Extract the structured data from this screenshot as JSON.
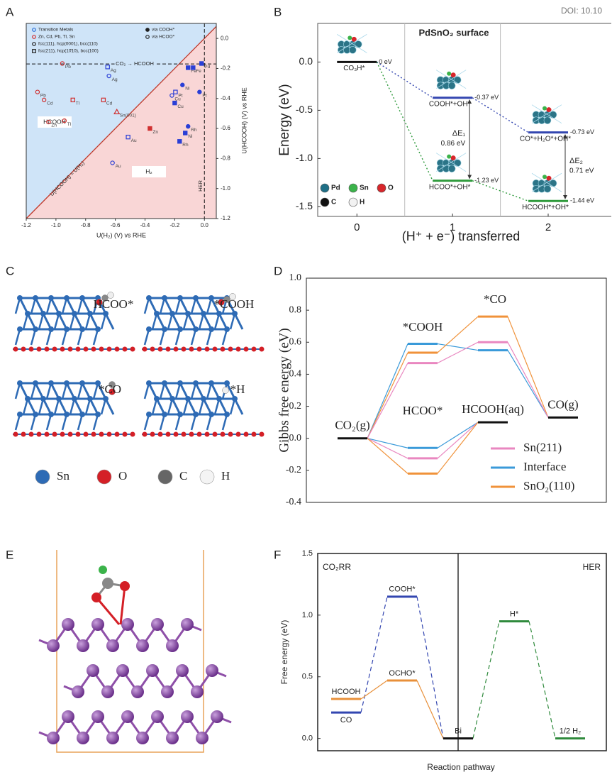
{
  "panel_labels": [
    "A",
    "B",
    "C",
    "D",
    "E",
    "F"
  ],
  "doi": "DOI: 10.10",
  "structures_c": {
    "labels": [
      "HCOO*",
      "*COOH",
      "*CO",
      "*H"
    ],
    "legend": [
      "Sn",
      "O",
      "C",
      "H"
    ]
  },
  "chart_data": [
    {
      "type": "scatter",
      "xlabel": "U(H₂) (V) vs RHE",
      "ylabel": "U(HCOOH) (V) vs RHE",
      "xlim": [
        -1.2,
        0.08
      ],
      "ylim": [
        -1.2,
        0.1
      ],
      "xticks": [
        -1.2,
        {
          "value": -1,
          "label": "-1.0"
        },
        -0.8,
        -0.6,
        -0.4,
        -0.2,
        {
          "value": 0,
          "label": "0.0"
        }
      ],
      "yticks": [
        {
          "value": 0,
          "label": "0.0"
        },
        -0.2,
        -0.4,
        -0.6,
        -0.8,
        {
          "value": -1,
          "label": "-1.0"
        },
        -1.2
      ],
      "y_axis_side": "right",
      "regions": [
        {
          "label": "HCOOH",
          "color": "#cfe4f8"
        },
        {
          "label": "H₂",
          "color": "#f9d6d6"
        }
      ],
      "diagonal": {
        "label": "U(HCOOH) = U(H₂)",
        "color": "#c0392b"
      },
      "hline": {
        "value": -0.17,
        "label": "CO₂ → HCOOH"
      },
      "vline": {
        "value": 0,
        "label": "HER"
      },
      "legend": [
        {
          "label": "Transition Metals",
          "shape": "circle",
          "filled": false,
          "color": "#2a6fd6"
        },
        {
          "label": "Zn, Cd, Pb, Tl, Sn",
          "shape": "circle",
          "filled": false,
          "color": "#d03030"
        },
        {
          "label": "fcc(111), hcp(0001), bcc(110)",
          "shape": "circle",
          "filled": false,
          "color": "#222222"
        },
        {
          "label": "fcc(211), hcp(10̄10), bcc(100)",
          "shape": "square",
          "filled": false,
          "color": "#222222"
        },
        {
          "label": "via COOH*",
          "shape": "circle",
          "filled": true,
          "color": "#222222"
        },
        {
          "label": "via HCOO*",
          "shape": "circle",
          "filled": false,
          "color": "#222222"
        }
      ],
      "points": [
        {
          "label": "Pb",
          "x": -0.957,
          "y": -0.167,
          "shape": "circle",
          "filled": false,
          "color": "#d03030"
        },
        {
          "label": "Ag",
          "x": -0.652,
          "y": -0.19,
          "shape": "square",
          "filled": false,
          "color": "#2a3fd6"
        },
        {
          "label": "Ag",
          "x": -0.643,
          "y": -0.25,
          "shape": "circle",
          "filled": false,
          "color": "#2a3fd6"
        },
        {
          "label": "Pb",
          "x": -1.124,
          "y": -0.357,
          "shape": "circle",
          "filled": false,
          "color": "#d03030"
        },
        {
          "label": "Cd",
          "x": -1.08,
          "y": -0.41,
          "shape": "circle",
          "filled": false,
          "color": "#d03030"
        },
        {
          "label": "Tl",
          "x": -0.886,
          "y": -0.41,
          "shape": "square",
          "filled": false,
          "color": "#d03030"
        },
        {
          "label": "Cd",
          "x": -0.68,
          "y": -0.41,
          "shape": "square",
          "filled": false,
          "color": "#d03030"
        },
        {
          "label": "Sn(001)",
          "x": -0.59,
          "y": -0.49,
          "shape": "triangle",
          "filled": false,
          "color": "#d03030"
        },
        {
          "label": "Zn",
          "x": -1.05,
          "y": -0.557,
          "shape": "circle",
          "filled": false,
          "color": "#d03030"
        },
        {
          "label": "Tl",
          "x": -0.943,
          "y": -0.548,
          "shape": "circle",
          "filled": false,
          "color": "#d03030"
        },
        {
          "label": "Zn",
          "x": -0.367,
          "y": -0.6,
          "shape": "square",
          "filled": true,
          "color": "#d03030"
        },
        {
          "label": "Au",
          "x": -0.514,
          "y": -0.657,
          "shape": "square",
          "filled": false,
          "color": "#2a3fd6"
        },
        {
          "label": "Au",
          "x": -0.619,
          "y": -0.829,
          "shape": "circle",
          "filled": false,
          "color": "#2a3fd6"
        },
        {
          "label": "Fe",
          "x": -0.11,
          "y": -0.195,
          "shape": "square",
          "filled": true,
          "color": "#2a3fd6"
        },
        {
          "label": "Fe",
          "x": -0.076,
          "y": -0.195,
          "shape": "square",
          "filled": true,
          "color": "#2a3fd6"
        },
        {
          "label": "Pd",
          "x": -0.019,
          "y": -0.167,
          "shape": "square",
          "filled": true,
          "color": "#2a3fd6"
        },
        {
          "label": "Ni",
          "x": -0.148,
          "y": -0.31,
          "shape": "circle",
          "filled": true,
          "color": "#2a3fd6"
        },
        {
          "label": "Pt",
          "x": -0.033,
          "y": -0.357,
          "shape": "circle",
          "filled": true,
          "color": "#2a3fd6"
        },
        {
          "label": "Pt",
          "x": -0.195,
          "y": -0.357,
          "shape": "square",
          "filled": false,
          "color": "#2a3fd6"
        },
        {
          "label": "Cu",
          "x": -0.219,
          "y": -0.38,
          "shape": "circle",
          "filled": false,
          "color": "#2a3fd6"
        },
        {
          "label": "Cu",
          "x": -0.2,
          "y": -0.43,
          "shape": "square",
          "filled": true,
          "color": "#2a3fd6"
        },
        {
          "label": "Rh",
          "x": -0.11,
          "y": -0.586,
          "shape": "circle",
          "filled": true,
          "color": "#2a3fd6"
        },
        {
          "label": "Ni",
          "x": -0.129,
          "y": -0.63,
          "shape": "square",
          "filled": true,
          "color": "#2a3fd6"
        },
        {
          "label": "Rh",
          "x": -0.167,
          "y": -0.686,
          "shape": "square",
          "filled": true,
          "color": "#2a3fd6"
        }
      ]
    },
    {
      "type": "energy",
      "title": "PdSnO₂ surface",
      "xlabel": "(H⁺ + e⁻) transferred",
      "ylabel": "Energy (eV)",
      "xlim": [
        -0.41,
        2.66
      ],
      "ylim": [
        -1.6,
        0.4
      ],
      "xticks": [
        0,
        1,
        2
      ],
      "yticks": [
        {
          "value": 0,
          "label": "0.0"
        },
        -0.5,
        {
          "value": -1,
          "label": "-1.0"
        },
        -1.5
      ],
      "dividers": [
        0.5,
        1.5
      ],
      "levels": [
        {
          "label": "CO₃H*",
          "value": 0,
          "value_label": "0 eV",
          "step": 0,
          "color": "#111111"
        },
        {
          "label": "COOH*+OH*",
          "value": -0.37,
          "value_label": "-0.37 eV",
          "step": 1,
          "color": "#3346b0"
        },
        {
          "label": "HCOO*+OH*",
          "value": -1.23,
          "value_label": "-1.23 eV",
          "step": 1,
          "color": "#2f9a3c"
        },
        {
          "label": "CO*+H₂O*+OH*",
          "value": -0.73,
          "value_label": "-0.73 eV",
          "step": 2,
          "color": "#3346b0"
        },
        {
          "label": "HCOOH*+OH*",
          "value": -1.44,
          "value_label": "-1.44 eV",
          "step": 2,
          "color": "#2f9a3c"
        }
      ],
      "connections": [
        {
          "from": 0,
          "to": 1,
          "color": "#3346b0",
          "dash": "2 3"
        },
        {
          "from": 1,
          "to": 3,
          "color": "#3346b0",
          "dash": "2 3"
        },
        {
          "from": 0,
          "to": 2,
          "color": "#2f9a3c",
          "dash": "2 3"
        },
        {
          "from": 2,
          "to": 4,
          "color": "#2f9a3c",
          "dash": "2 3"
        }
      ],
      "deltas": [
        {
          "label": "ΔE₁",
          "value": 0.86,
          "value_label": "0.86 eV",
          "from": 1,
          "to": 2
        },
        {
          "label": "ΔE₂",
          "value": 0.71,
          "value_label": "0.71 eV",
          "from": 3,
          "to": 4
        }
      ],
      "atom_legend": [
        {
          "label": "Pd",
          "color": "#1f6f86"
        },
        {
          "label": "Sn",
          "color": "#3bb34a"
        },
        {
          "label": "O",
          "color": "#d8262b"
        },
        {
          "label": "C",
          "color": "#111111"
        },
        {
          "label": "H",
          "color": "#f2f2f2"
        }
      ]
    },
    {
      "type": "energy",
      "ylabel": "Gibbs free energy (eV)",
      "ylim": [
        -0.4,
        1.0
      ],
      "yticks": [
        {
          "value": 1,
          "label": "1.0"
        },
        0.8,
        0.6,
        0.4,
        0.2,
        {
          "value": 0,
          "label": "0.0"
        },
        -0.2,
        -0.4
      ],
      "annotations": [
        "*COOH",
        "HCOO*",
        "*CO"
      ],
      "legend": [
        {
          "label": "Sn(211)",
          "color": "#e987c0"
        },
        {
          "label": "Interface",
          "color": "#3a9ad9"
        },
        {
          "label": "SnO₂(110)",
          "color": "#f0923a"
        }
      ],
      "levels": [
        {
          "label": "CO₂(g)",
          "value": 0,
          "step": 0,
          "color": "#111111"
        },
        {
          "value": 0.59,
          "step": 1,
          "color": "#3a9ad9"
        },
        {
          "value": 0.535,
          "step": 1,
          "color": "#f0923a"
        },
        {
          "value": 0.47,
          "step": 1,
          "color": "#e987c0"
        },
        {
          "value": -0.06,
          "step": 1,
          "color": "#3a9ad9"
        },
        {
          "value": -0.125,
          "step": 1,
          "color": "#e987c0"
        },
        {
          "value": -0.22,
          "step": 1,
          "color": "#f0923a"
        },
        {
          "label": "HCOOH(aq)",
          "value": 0.1,
          "step": 2,
          "color": "#111111"
        },
        {
          "value": 0.76,
          "step": 2,
          "color": "#f0923a"
        },
        {
          "value": 0.6,
          "step": 2,
          "color": "#e987c0"
        },
        {
          "value": 0.55,
          "step": 2,
          "color": "#3a9ad9"
        },
        {
          "label": "CO(g)",
          "value": 0.13,
          "step": 3,
          "color": "#111111"
        }
      ],
      "connections": [
        {
          "from": 0,
          "to": 1,
          "color": "#3a9ad9"
        },
        {
          "from": 0,
          "to": 2,
          "color": "#f0923a"
        },
        {
          "from": 0,
          "to": 3,
          "color": "#e987c0"
        },
        {
          "from": 0,
          "to": 4,
          "color": "#3a9ad9"
        },
        {
          "from": 0,
          "to": 5,
          "color": "#e987c0"
        },
        {
          "from": 0,
          "to": 6,
          "color": "#f0923a"
        },
        {
          "from": 1,
          "to": 10,
          "color": "#3a9ad9"
        },
        {
          "from": 2,
          "to": 8,
          "color": "#f0923a"
        },
        {
          "from": 3,
          "to": 9,
          "color": "#e987c0"
        },
        {
          "from": 4,
          "to": 7,
          "color": "#3a9ad9"
        },
        {
          "from": 5,
          "to": 7,
          "color": "#e987c0"
        },
        {
          "from": 6,
          "to": 7,
          "color": "#f0923a"
        },
        {
          "from": 10,
          "to": 11,
          "color": "#3a9ad9"
        },
        {
          "from": 8,
          "to": 11,
          "color": "#f0923a"
        },
        {
          "from": 9,
          "to": 11,
          "color": "#e987c0"
        }
      ]
    },
    {
      "type": "energy",
      "xlabel": "Reaction pathway",
      "ylabel": "Free energy (eV)",
      "ylim": [
        -0.1,
        1.5
      ],
      "yticks": [
        {
          "value": 0,
          "label": "0.0"
        },
        0.5,
        {
          "value": 1,
          "label": "1.0"
        },
        1.5
      ],
      "regions": [
        "CO₂RR",
        "HER"
      ],
      "dividers": [
        2
      ],
      "levels": [
        {
          "label": "CO",
          "value": 0.21,
          "step": 0,
          "color": "#3346b0",
          "label_position": "below"
        },
        {
          "label": "HCOOH",
          "value": 0.32,
          "step": 0,
          "color": "#e8903a"
        },
        {
          "label": "COOH*",
          "value": 1.15,
          "step": 1,
          "color": "#3346b0"
        },
        {
          "label": "OCHO*",
          "value": 0.47,
          "step": 1,
          "color": "#e8903a"
        },
        {
          "label": "Bi",
          "value": 0,
          "step": 2,
          "color": "#111111"
        },
        {
          "label": "H*",
          "value": 0.95,
          "step": 3,
          "color": "#2f8a3c"
        },
        {
          "label": "1/2 H₂",
          "value": 0,
          "step": 4,
          "color": "#2f8a3c"
        }
      ],
      "connections": [
        {
          "from": 0,
          "to": 2,
          "color": "#3346b0",
          "dash": "6 4"
        },
        {
          "from": 2,
          "to": 4,
          "color": "#3346b0",
          "dash": "6 4"
        },
        {
          "from": 1,
          "to": 3,
          "color": "#e8903a"
        },
        {
          "from": 3,
          "to": 4,
          "color": "#e8903a"
        },
        {
          "from": 4,
          "to": 5,
          "color": "#2f8a3c",
          "dash": "6 4"
        },
        {
          "from": 5,
          "to": 6,
          "color": "#2f8a3c",
          "dash": "6 4"
        }
      ]
    }
  ]
}
